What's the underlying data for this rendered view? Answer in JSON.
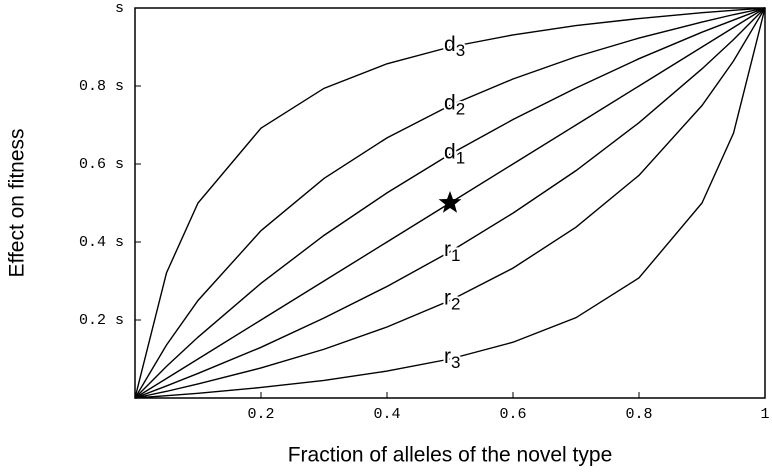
{
  "chart_data": {
    "type": "line",
    "x_label": "Fraction of alleles of the novel type",
    "y_label": "Effect on fitness",
    "x": [
      0,
      0.05,
      0.1,
      0.2,
      0.3,
      0.4,
      0.5,
      0.6,
      0.7,
      0.8,
      0.9,
      0.95,
      1
    ],
    "series": [
      {
        "name": "d3",
        "color": "#000000",
        "values": [
          0,
          0.321,
          0.5,
          0.692,
          0.794,
          0.857,
          0.9,
          0.931,
          0.955,
          0.973,
          0.988,
          0.994,
          1
        ]
      },
      {
        "name": "d2",
        "color": "#000000",
        "values": [
          0,
          0.136,
          0.25,
          0.429,
          0.563,
          0.667,
          0.75,
          0.818,
          0.875,
          0.923,
          0.964,
          0.983,
          1
        ]
      },
      {
        "name": "d1",
        "color": "#000000",
        "values": [
          0,
          0.081,
          0.156,
          0.294,
          0.417,
          0.526,
          0.625,
          0.714,
          0.795,
          0.87,
          0.938,
          0.969,
          1
        ]
      },
      {
        "color": "#000000",
        "values": [
          0,
          0.05,
          0.1,
          0.2,
          0.3,
          0.4,
          0.5,
          0.6,
          0.7,
          0.8,
          0.9,
          0.95,
          1
        ]
      },
      {
        "name": "r1",
        "color": "#000000",
        "values": [
          0,
          0.031,
          0.063,
          0.13,
          0.205,
          0.286,
          0.375,
          0.474,
          0.583,
          0.706,
          0.844,
          0.919,
          1
        ]
      },
      {
        "name": "r2",
        "color": "#000000",
        "values": [
          0,
          0.017,
          0.036,
          0.077,
          0.125,
          0.182,
          0.25,
          0.333,
          0.438,
          0.571,
          0.75,
          0.864,
          1
        ]
      },
      {
        "name": "r3",
        "color": "#000000",
        "values": [
          0,
          0.006,
          0.012,
          0.027,
          0.045,
          0.069,
          0.1,
          0.143,
          0.206,
          0.308,
          0.5,
          0.679,
          1
        ]
      }
    ],
    "star": {
      "x": 0.5,
      "y": 0.5
    },
    "xlim": [
      0,
      1
    ],
    "ylim": [
      0,
      1
    ],
    "xticks": [
      0.2,
      0.4,
      0.6,
      0.8,
      1
    ],
    "yticks": [
      {
        "value": 0.2,
        "label": "0.2 s"
      },
      {
        "value": 0.4,
        "label": "0.4 s"
      },
      {
        "value": 0.6,
        "label": "0.6 s"
      },
      {
        "value": 0.8,
        "label": "0.8 s"
      },
      {
        "value": 1,
        "label": "s"
      }
    ],
    "grid": false
  }
}
